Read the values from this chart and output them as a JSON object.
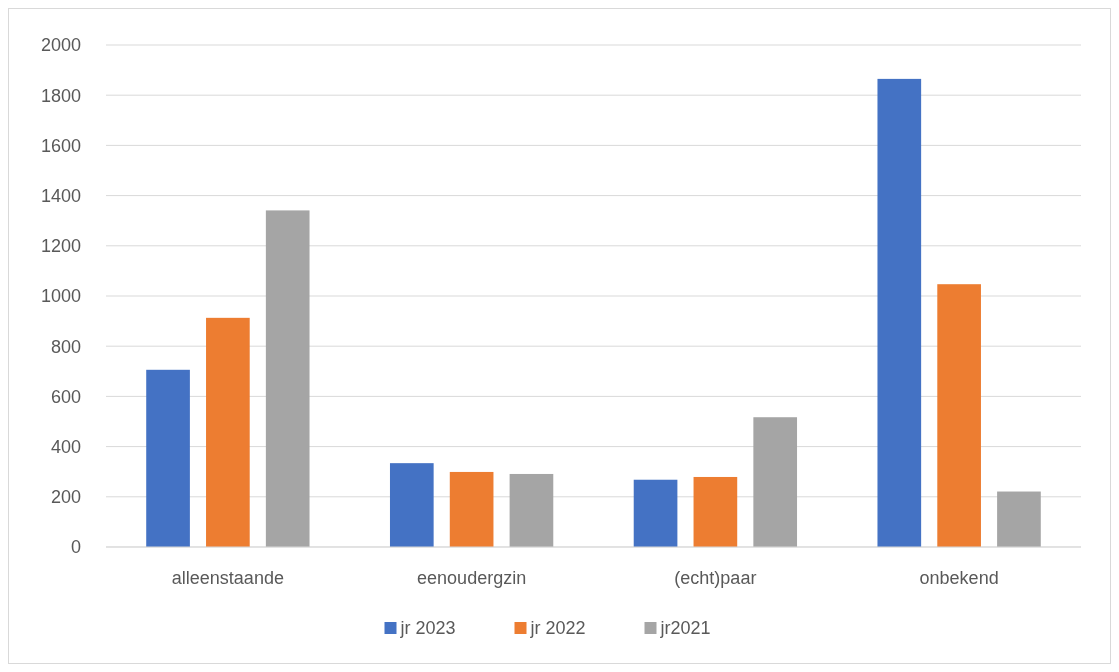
{
  "chart_data": {
    "type": "bar",
    "categories": [
      "alleenstaande",
      "eenoudergzin",
      "(echt)paar",
      "onbekend"
    ],
    "series": [
      {
        "name": "jr 2023",
        "color": "#4472c4",
        "values": [
          706,
          334,
          268,
          1865
        ]
      },
      {
        "name": "jr 2022",
        "color": "#ed7d31",
        "values": [
          913,
          299,
          279,
          1047
        ]
      },
      {
        "name": "jr2021",
        "color": "#a5a5a5",
        "values": [
          1341,
          291,
          517,
          221
        ]
      }
    ],
    "ylim": [
      0,
      2000
    ],
    "yticks": [
      0,
      200,
      400,
      600,
      800,
      1000,
      1200,
      1400,
      1600,
      1800,
      2000
    ],
    "grid": "y",
    "legend": "bottom"
  }
}
